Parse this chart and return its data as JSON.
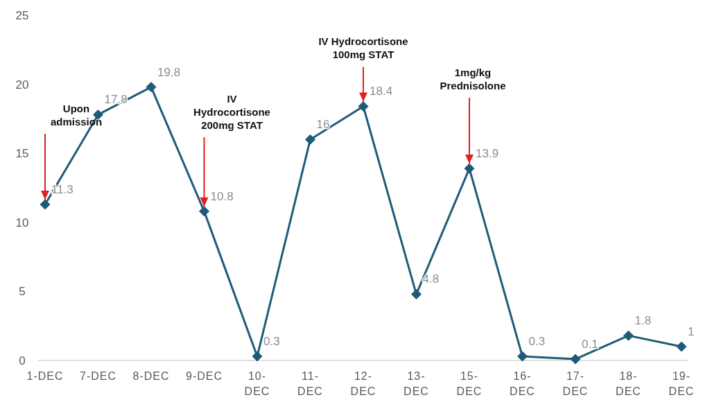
{
  "chart_data": {
    "type": "line",
    "categories": [
      "1-DEC",
      "7-DEC",
      "8-DEC",
      "9-DEC",
      "10-DEC",
      "11-DEC",
      "12-DEC",
      "13-DEC",
      "15-DEC",
      "16-DEC",
      "17-DEC",
      "18-DEC",
      "19-DEC"
    ],
    "series": [
      {
        "color": "#1f5b78",
        "values": [
          11.3,
          17.8,
          19.8,
          10.8,
          0.3,
          16,
          18.4,
          4.8,
          13.9,
          0.3,
          0.1,
          1.8,
          1
        ]
      }
    ],
    "ylim": [
      0,
      25
    ],
    "yticks": [
      0,
      5,
      10,
      15,
      20,
      25
    ],
    "grid": false,
    "legend": false,
    "marker": "diamond",
    "line_style": "solid",
    "data_labels": true,
    "annotations": [
      {
        "text": "Upon admission",
        "x": "1-DEC",
        "y": 11.3
      },
      {
        "text": "IV Hydrocortisone 200mg STAT",
        "x": "9-DEC",
        "y": 10.8
      },
      {
        "text": "IV Hydrocortisone 100mg STAT",
        "x": "12-DEC",
        "y": 18.4
      },
      {
        "text": "1mg/kg Prednisolone",
        "x": "15-DEC",
        "y": 13.9
      }
    ]
  }
}
